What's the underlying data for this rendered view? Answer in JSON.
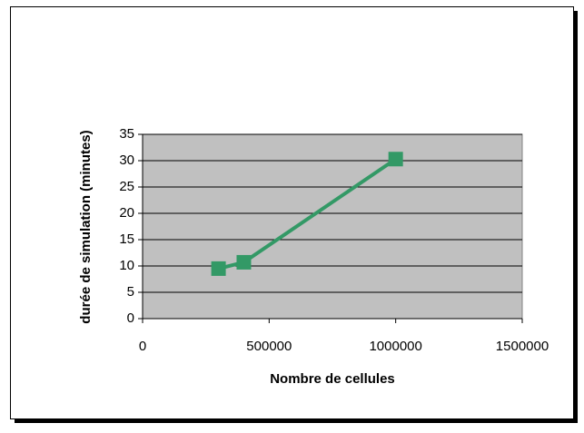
{
  "chart_data": {
    "type": "line",
    "x_label": "Nombre de cellules",
    "y_label": "durée de simulation (minutes)",
    "x": [
      300000,
      400000,
      1000000
    ],
    "series": [
      {
        "color": "#339966",
        "values": [
          9.5,
          10.7,
          30.3
        ]
      }
    ],
    "xlim": [
      0,
      1500000
    ],
    "xticks": [
      0,
      500000,
      1000000,
      1500000
    ],
    "ylim": [
      0,
      35
    ],
    "yticks": [
      0,
      5,
      10,
      15,
      20,
      25,
      30,
      35
    ],
    "grid": true
  }
}
